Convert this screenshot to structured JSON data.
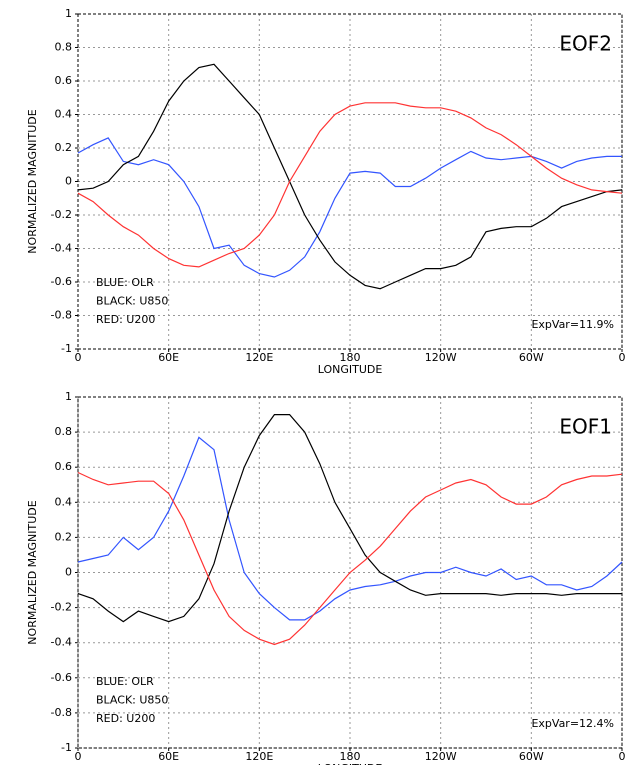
{
  "chart_data": [
    {
      "type": "line",
      "label": "EOF2",
      "annotation": "ExpVar=11.9%",
      "xlabel": "LONGITUDE",
      "ylabel": "NORMALIZED MAGNITUDE",
      "grid": true,
      "x": [
        0,
        10,
        20,
        30,
        40,
        50,
        60,
        70,
        80,
        90,
        100,
        110,
        120,
        130,
        140,
        150,
        160,
        170,
        180,
        190,
        200,
        210,
        220,
        230,
        240,
        250,
        260,
        270,
        280,
        290,
        300,
        310,
        320,
        330,
        340,
        350,
        360
      ],
      "xlim": [
        0,
        360
      ],
      "xticks": [
        0,
        {
          "value": 60,
          "label": "60E"
        },
        {
          "value": 120,
          "label": "120E"
        },
        180,
        {
          "value": 240,
          "label": "120W"
        },
        {
          "value": 300,
          "label": "60W"
        },
        {
          "value": 360,
          "label": "0"
        }
      ],
      "ylim": [
        -1,
        1
      ],
      "yticks": [
        -1,
        -0.8,
        -0.6,
        -0.4,
        -0.2,
        0,
        0.2,
        0.4,
        0.6,
        0.8,
        1
      ],
      "series": [
        {
          "name": "BLUE: OLR",
          "color": "#3355ff",
          "values": [
            0.17,
            0.22,
            0.26,
            0.12,
            0.1,
            0.13,
            0.1,
            0.0,
            -0.15,
            -0.4,
            -0.38,
            -0.5,
            -0.55,
            -0.57,
            -0.53,
            -0.45,
            -0.3,
            -0.1,
            0.05,
            0.06,
            0.05,
            -0.03,
            -0.03,
            0.02,
            0.08,
            0.13,
            0.18,
            0.14,
            0.13,
            0.14,
            0.15,
            0.12,
            0.08,
            0.12,
            0.14,
            0.15,
            0.15
          ]
        },
        {
          "name": "BLACK: U850",
          "color": "#000000",
          "values": [
            -0.05,
            -0.04,
            0.0,
            0.1,
            0.15,
            0.3,
            0.48,
            0.6,
            0.68,
            0.7,
            0.6,
            0.5,
            0.4,
            0.2,
            0.0,
            -0.2,
            -0.35,
            -0.48,
            -0.56,
            -0.62,
            -0.64,
            -0.6,
            -0.56,
            -0.52,
            -0.52,
            -0.5,
            -0.45,
            -0.3,
            -0.28,
            -0.27,
            -0.27,
            -0.22,
            -0.15,
            -0.12,
            -0.09,
            -0.06,
            -0.05
          ]
        },
        {
          "name": "RED: U200",
          "color": "#ff3333",
          "values": [
            -0.07,
            -0.12,
            -0.2,
            -0.27,
            -0.32,
            -0.4,
            -0.46,
            -0.5,
            -0.51,
            -0.47,
            -0.43,
            -0.4,
            -0.32,
            -0.2,
            0.0,
            0.15,
            0.3,
            0.4,
            0.45,
            0.47,
            0.47,
            0.47,
            0.45,
            0.44,
            0.44,
            0.42,
            0.38,
            0.32,
            0.28,
            0.22,
            0.15,
            0.08,
            0.02,
            -0.02,
            -0.05,
            -0.06,
            -0.07
          ]
        }
      ]
    },
    {
      "type": "line",
      "label": "EOF1",
      "annotation": "ExpVar=12.4%",
      "xlabel": "LONGITUDE",
      "ylabel": "NORMALIZED MAGNITUDE",
      "grid": true,
      "x": [
        0,
        10,
        20,
        30,
        40,
        50,
        60,
        70,
        80,
        90,
        100,
        110,
        120,
        130,
        140,
        150,
        160,
        170,
        180,
        190,
        200,
        210,
        220,
        230,
        240,
        250,
        260,
        270,
        280,
        290,
        300,
        310,
        320,
        330,
        340,
        350,
        360
      ],
      "xlim": [
        0,
        360
      ],
      "xticks": [
        0,
        {
          "value": 60,
          "label": "60E"
        },
        {
          "value": 120,
          "label": "120E"
        },
        180,
        {
          "value": 240,
          "label": "120W"
        },
        {
          "value": 300,
          "label": "60W"
        },
        {
          "value": 360,
          "label": "0"
        }
      ],
      "ylim": [
        -1,
        1
      ],
      "yticks": [
        -1,
        -0.8,
        -0.6,
        -0.4,
        -0.2,
        0,
        0.2,
        0.4,
        0.6,
        0.8,
        1
      ],
      "series": [
        {
          "name": "BLUE: OLR",
          "color": "#3355ff",
          "values": [
            0.06,
            0.08,
            0.1,
            0.2,
            0.13,
            0.2,
            0.35,
            0.55,
            0.77,
            0.7,
            0.3,
            0.0,
            -0.12,
            -0.2,
            -0.27,
            -0.27,
            -0.22,
            -0.15,
            -0.1,
            -0.08,
            -0.07,
            -0.05,
            -0.02,
            0.0,
            0.0,
            0.03,
            0.0,
            -0.02,
            0.02,
            -0.04,
            -0.02,
            -0.07,
            -0.07,
            -0.1,
            -0.08,
            -0.02,
            0.06
          ]
        },
        {
          "name": "BLACK: U850",
          "color": "#000000",
          "values": [
            -0.12,
            -0.15,
            -0.22,
            -0.28,
            -0.22,
            -0.25,
            -0.28,
            -0.25,
            -0.15,
            0.05,
            0.35,
            0.6,
            0.78,
            0.9,
            0.9,
            0.8,
            0.62,
            0.4,
            0.25,
            0.1,
            0.0,
            -0.05,
            -0.1,
            -0.13,
            -0.12,
            -0.12,
            -0.12,
            -0.12,
            -0.13,
            -0.12,
            -0.12,
            -0.12,
            -0.13,
            -0.12,
            -0.12,
            -0.12,
            -0.12
          ]
        },
        {
          "name": "RED: U200",
          "color": "#ff3333",
          "values": [
            0.57,
            0.53,
            0.5,
            0.51,
            0.52,
            0.52,
            0.45,
            0.3,
            0.1,
            -0.1,
            -0.25,
            -0.33,
            -0.38,
            -0.41,
            -0.38,
            -0.3,
            -0.2,
            -0.1,
            0.0,
            0.07,
            0.15,
            0.25,
            0.35,
            0.43,
            0.47,
            0.51,
            0.53,
            0.5,
            0.43,
            0.39,
            0.39,
            0.43,
            0.5,
            0.53,
            0.55,
            0.55,
            0.56
          ]
        }
      ]
    }
  ]
}
